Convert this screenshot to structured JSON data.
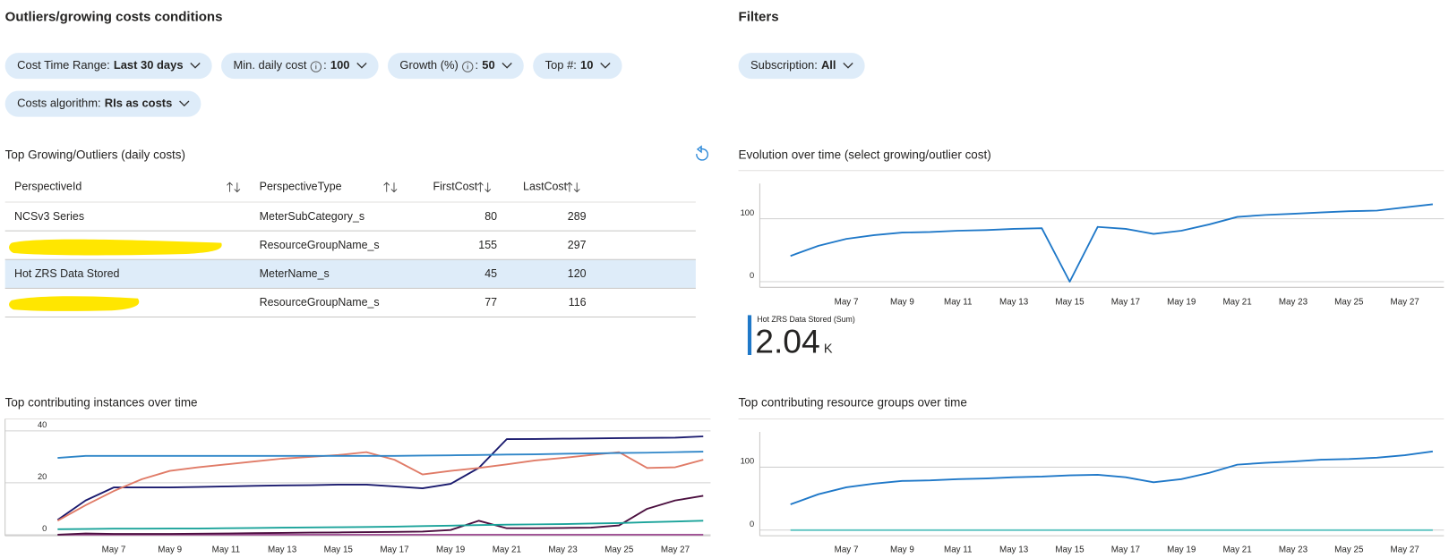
{
  "header": {
    "title": "Outliers/growing costs conditions",
    "filters_title": "Filters"
  },
  "pills": [
    {
      "label": "Cost Time Range:",
      "value": "Last 30 days"
    },
    {
      "label": "Min. daily cost",
      "info": true,
      "separator": ":",
      "value": "100"
    },
    {
      "label": "Growth (%)",
      "info": true,
      "separator": ":",
      "value": "50"
    },
    {
      "label": "Top #:",
      "value": "10"
    },
    {
      "label": "Costs algorithm:",
      "value": "RIs as costs"
    }
  ],
  "filter_pills": [
    {
      "label": "Subscription:",
      "value": "All"
    }
  ],
  "table": {
    "title": "Top Growing/Outliers (daily costs)",
    "columns": [
      "PerspectiveId",
      "PerspectiveType",
      "FirstCost",
      "LastCost"
    ],
    "rows": [
      [
        "NCSv3 Series",
        "MeterSubCategory_s",
        80,
        289
      ],
      [
        null,
        "ResourceGroupName_s",
        155,
        297
      ],
      [
        "Hot ZRS Data Stored",
        "MeterName_s",
        45,
        120
      ],
      [
        null,
        "ResourceGroupName_s",
        77,
        116
      ]
    ],
    "selected_row": 2
  },
  "chart_data": [
    {
      "type": "line",
      "title": "Evolution over time (select growing/outlier cost)",
      "x": [
        5,
        6,
        7,
        8,
        9,
        10,
        11,
        12,
        13,
        14,
        15,
        16,
        17,
        18,
        19,
        20,
        21,
        22,
        23,
        24,
        25,
        26,
        27,
        28
      ],
      "xlim": [
        3.9,
        28.4
      ],
      "xticks": [
        {
          "value": 7,
          "label": "May 7"
        },
        {
          "value": 9,
          "label": "May 9"
        },
        {
          "value": 11,
          "label": "May 11"
        },
        {
          "value": 13,
          "label": "May 13"
        },
        {
          "value": 15,
          "label": "May 15"
        },
        {
          "value": 17,
          "label": "May 17"
        },
        {
          "value": 19,
          "label": "May 19"
        },
        {
          "value": 21,
          "label": "May 21"
        },
        {
          "value": 23,
          "label": "May 23"
        },
        {
          "value": 25,
          "label": "May 25"
        },
        {
          "value": 27,
          "label": "May 27"
        }
      ],
      "ylim": [
        -9,
        156
      ],
      "yticks": [
        0,
        100
      ],
      "grid": true,
      "series": [
        {
          "color": "#1f78c8",
          "values": [
            41,
            57,
            68,
            74,
            78,
            79,
            81,
            82,
            84,
            85,
            0,
            87,
            84,
            76,
            81,
            91,
            103,
            106,
            108,
            110,
            112,
            113,
            118,
            123
          ]
        }
      ],
      "summary": {
        "label": "Hot ZRS Data Stored (Sum)",
        "value": 2.04,
        "unit": "K",
        "color": "#1f78c8"
      }
    },
    {
      "type": "line",
      "title": "Top contributing instances over time",
      "x": [
        5,
        6,
        7,
        8,
        9,
        10,
        11,
        12,
        13,
        14,
        15,
        16,
        17,
        18,
        19,
        20,
        21,
        22,
        23,
        24,
        25,
        26,
        27,
        28
      ],
      "xlim": [
        3.13,
        28.26
      ],
      "xticks": [
        {
          "value": 7,
          "label": "May 7"
        },
        {
          "value": 9,
          "label": "May 9"
        },
        {
          "value": 11,
          "label": "May 11"
        },
        {
          "value": 13,
          "label": "May 13"
        },
        {
          "value": 15,
          "label": "May 15"
        },
        {
          "value": 17,
          "label": "May 17"
        },
        {
          "value": 19,
          "label": "May 19"
        },
        {
          "value": 21,
          "label": "May 21"
        },
        {
          "value": 23,
          "label": "May 23"
        },
        {
          "value": 25,
          "label": "May 25"
        },
        {
          "value": 27,
          "label": "May 27"
        }
      ],
      "ylim": [
        -0.4,
        44.6
      ],
      "yticks": [
        0,
        20,
        40
      ],
      "grid": true,
      "series": [
        {
          "color": "#2f86c8",
          "values": [
            29.6,
            30.4,
            30.4,
            30.4,
            30.4,
            30.4,
            30.4,
            30.4,
            30.4,
            30.4,
            30.4,
            30.4,
            30.4,
            30.5,
            30.6,
            30.7,
            30.9,
            31,
            31.2,
            31.3,
            31.5,
            31.6,
            31.8,
            32
          ]
        },
        {
          "color": "#e07b67",
          "values": [
            5.4,
            11.4,
            16.8,
            21.4,
            24.6,
            26,
            27.1,
            28.2,
            29.3,
            30,
            30.7,
            31.8,
            28.9,
            23.2,
            24.6,
            25.7,
            27.1,
            28.6,
            29.6,
            30.7,
            31.8,
            25.7,
            26,
            28.9
          ]
        },
        {
          "color": "#1a1a6e",
          "values": [
            5.7,
            13.2,
            18.2,
            18.2,
            18.2,
            18.4,
            18.6,
            18.8,
            19,
            19.1,
            19.3,
            19.3,
            18.6,
            17.9,
            19.6,
            25.7,
            36.8,
            36.9,
            37,
            37.1,
            37.2,
            37.3,
            37.4,
            37.9
          ]
        },
        {
          "color": "#1aa39a",
          "values": [
            2.1,
            2.2,
            2.3,
            2.3,
            2.4,
            2.4,
            2.5,
            2.6,
            2.7,
            2.8,
            2.9,
            3,
            3.1,
            3.3,
            3.5,
            3.7,
            3.9,
            4,
            4.1,
            4.3,
            4.5,
            4.8,
            5.1,
            5.4
          ]
        },
        {
          "color": "#4b0f3f",
          "values": [
            0,
            0.5,
            0.3,
            0.3,
            0.3,
            0.4,
            0.5,
            0.6,
            0.7,
            0.8,
            0.9,
            1,
            1.1,
            1.2,
            1.8,
            5.4,
            2.5,
            2.5,
            2.6,
            2.7,
            3.6,
            10,
            13.2,
            15
          ]
        },
        {
          "color": "#a05195",
          "values": [
            0,
            0,
            0,
            0,
            0,
            0,
            0,
            0,
            0,
            0,
            0,
            0,
            0,
            0,
            0,
            0,
            0,
            0,
            0,
            0,
            0,
            0,
            0,
            0
          ]
        }
      ]
    },
    {
      "type": "line",
      "title": "Top contributing resource groups over time",
      "x": [
        5,
        6,
        7,
        8,
        9,
        10,
        11,
        12,
        13,
        14,
        15,
        16,
        17,
        18,
        19,
        20,
        21,
        22,
        23,
        24,
        25,
        26,
        27,
        28
      ],
      "xlim": [
        3.9,
        28.4
      ],
      "xticks": [
        {
          "value": 7,
          "label": "May 7"
        },
        {
          "value": 9,
          "label": "May 9"
        },
        {
          "value": 11,
          "label": "May 11"
        },
        {
          "value": 13,
          "label": "May 13"
        },
        {
          "value": 15,
          "label": "May 15"
        },
        {
          "value": 17,
          "label": "May 17"
        },
        {
          "value": 19,
          "label": "May 19"
        },
        {
          "value": 21,
          "label": "May 21"
        },
        {
          "value": 23,
          "label": "May 23"
        },
        {
          "value": 25,
          "label": "May 25"
        },
        {
          "value": 27,
          "label": "May 27"
        }
      ],
      "ylim": [
        -9,
        156
      ],
      "yticks": [
        0,
        100
      ],
      "grid": true,
      "series": [
        {
          "color": "#1f78c8",
          "values": [
            41,
            57,
            68,
            74,
            78,
            79,
            81,
            82,
            84,
            85,
            87,
            88,
            84,
            76,
            81,
            91,
            104,
            107,
            109,
            112,
            113,
            115,
            119,
            125
          ]
        },
        {
          "color": "#5cc3c0",
          "values": [
            0,
            0,
            0,
            0,
            0,
            0,
            0,
            0,
            0,
            0,
            0,
            0,
            0,
            0,
            0,
            0,
            0,
            0,
            0,
            0,
            0,
            0,
            0,
            0
          ]
        }
      ]
    }
  ]
}
